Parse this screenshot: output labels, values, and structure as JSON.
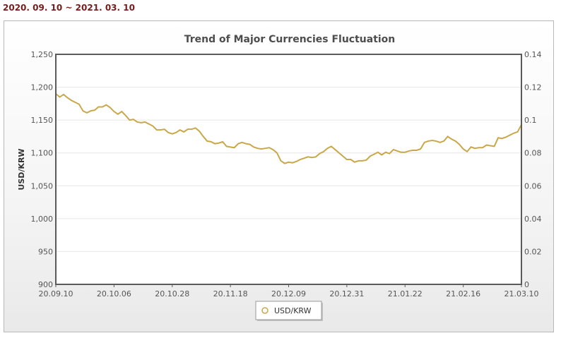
{
  "header": {
    "date_range": "2020. 09. 10 ~ 2021. 03. 10"
  },
  "colors": {
    "series": "#c9a84a",
    "frame": "#5a5a5a",
    "grid": "#e6e6e6"
  },
  "chart_data": {
    "type": "line",
    "title": "Trend of Major Currencies Fluctuation",
    "xlabel": "",
    "ylabel": "USD/KRW",
    "ylim": [
      900,
      1250
    ],
    "y_ticks": [
      "900",
      "950",
      "1,000",
      "1,050",
      "1,100",
      "1,150",
      "1,200",
      "1,250"
    ],
    "y2lim": [
      0,
      0.14
    ],
    "y2_ticks": [
      "0",
      "0.02",
      "0.04",
      "0.06",
      "0.08",
      "0.1",
      "0.12",
      "0.14"
    ],
    "x_ticks": [
      "20.09.10",
      "20.10.06",
      "20.10.28",
      "20.11.18",
      "20.12.09",
      "20.12.31",
      "21.01.22",
      "21.02.16",
      "21.03.10"
    ],
    "grid": "horizontal",
    "legend_position": "bottom-center",
    "series": [
      {
        "name": "USD/KRW",
        "values": [
          1190,
          1185,
          1189,
          1184,
          1180,
          1177,
          1174,
          1164,
          1161,
          1164,
          1165,
          1170,
          1170,
          1173,
          1169,
          1163,
          1159,
          1163,
          1157,
          1150,
          1151,
          1147,
          1146,
          1147,
          1144,
          1141,
          1135,
          1135,
          1136,
          1131,
          1129,
          1131,
          1135,
          1132,
          1136,
          1136,
          1138,
          1133,
          1125,
          1118,
          1117,
          1114,
          1115,
          1117,
          1110,
          1109,
          1108,
          1114,
          1116,
          1114,
          1113,
          1109,
          1107,
          1106,
          1107,
          1108,
          1105,
          1100,
          1088,
          1084,
          1086,
          1085,
          1087,
          1090,
          1092,
          1094,
          1093,
          1094,
          1099,
          1102,
          1107,
          1110,
          1105,
          1100,
          1095,
          1090,
          1090,
          1086,
          1088,
          1088,
          1089,
          1095,
          1098,
          1101,
          1097,
          1101,
          1099,
          1105,
          1103,
          1101,
          1101,
          1103,
          1104,
          1104,
          1106,
          1116,
          1118,
          1119,
          1118,
          1116,
          1118,
          1125,
          1121,
          1118,
          1113,
          1106,
          1102,
          1109,
          1107,
          1108,
          1108,
          1112,
          1111,
          1110,
          1123,
          1122,
          1124,
          1127,
          1130,
          1132,
          1143
        ]
      }
    ]
  }
}
